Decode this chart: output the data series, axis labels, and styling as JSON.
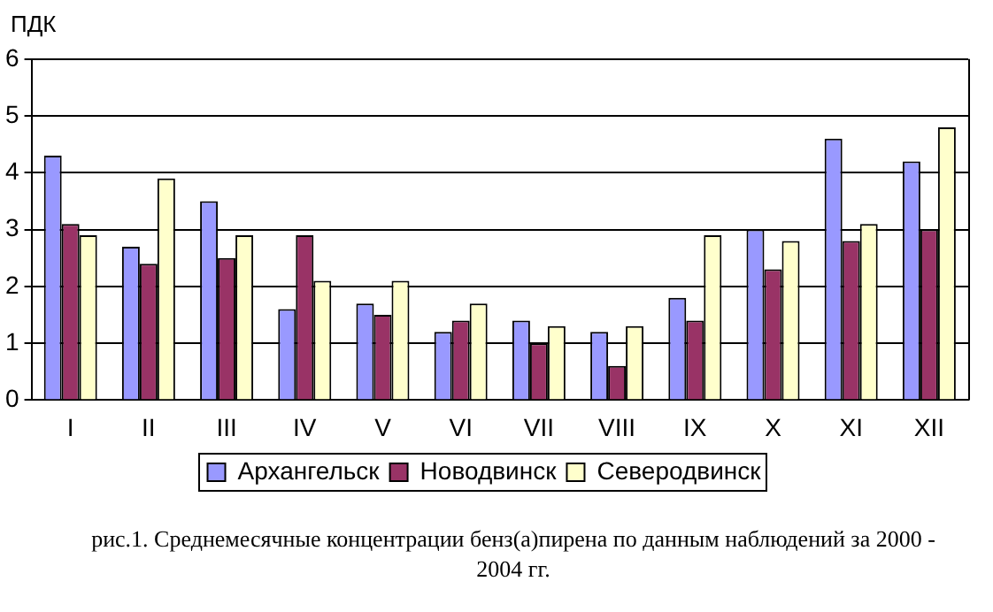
{
  "chart_data": {
    "type": "bar",
    "ylabel": "ПДК",
    "categories": [
      "I",
      "II",
      "III",
      "IV",
      "V",
      "VI",
      "VII",
      "VIII",
      "IX",
      "X",
      "XI",
      "XII"
    ],
    "series": [
      {
        "name": "Архангельск",
        "color": "#9999ff",
        "values": [
          4.3,
          2.7,
          3.5,
          1.6,
          1.7,
          1.2,
          1.4,
          1.2,
          1.8,
          3.0,
          4.6,
          4.2
        ]
      },
      {
        "name": "Новодвинск",
        "color": "#993366",
        "values": [
          3.1,
          2.4,
          2.5,
          2.9,
          1.5,
          1.4,
          1.0,
          0.6,
          1.4,
          2.3,
          2.8,
          3.0
        ]
      },
      {
        "name": "Северодвинск",
        "color": "#ffffcc",
        "values": [
          2.9,
          3.9,
          2.9,
          2.1,
          2.1,
          1.7,
          1.3,
          1.3,
          2.9,
          2.8,
          3.1,
          4.8
        ]
      }
    ],
    "ylim": [
      0,
      6
    ],
    "yticks": [
      0,
      1,
      2,
      3,
      4,
      5,
      6
    ],
    "grid": "y",
    "legend": "bottom",
    "annotations": [
      "рис.1. Среднемесячные концентрации бенз(а)пирена по данным наблюдений за 2000 - 2004 гг."
    ]
  }
}
